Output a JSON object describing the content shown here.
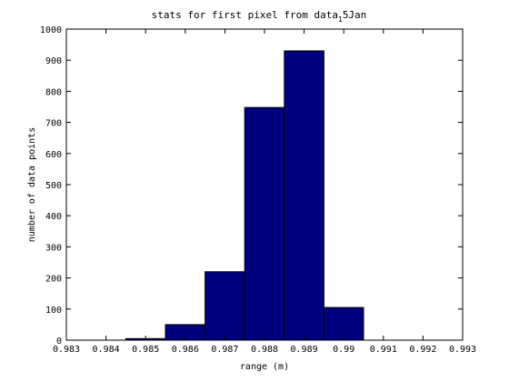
{
  "chart_data": {
    "type": "bar",
    "title": "stats for first pixel from data",
    "title_subscript": "1",
    "title_suffix": "5Jan",
    "xlabel": "range (m)",
    "ylabel": "number of data points",
    "xlim": [
      0.983,
      0.993
    ],
    "ylim": [
      0,
      1000
    ],
    "xticks": [
      0.983,
      0.984,
      0.985,
      0.986,
      0.987,
      0.988,
      0.989,
      0.99,
      0.991,
      0.992,
      0.993
    ],
    "xtick_labels": [
      "0.983",
      "0.984",
      "0.985",
      "0.986",
      "0.987",
      "0.988",
      "0.989",
      "0.99",
      "0.991",
      "0.992",
      "0.993"
    ],
    "yticks": [
      0,
      100,
      200,
      300,
      400,
      500,
      600,
      700,
      800,
      900,
      1000
    ],
    "ytick_labels": [
      "0",
      "100",
      "200",
      "300",
      "400",
      "500",
      "600",
      "700",
      "800",
      "900",
      "1000"
    ],
    "bins": [
      {
        "x0": 0.9845,
        "x1": 0.9855,
        "value": 5
      },
      {
        "x0": 0.9855,
        "x1": 0.9865,
        "value": 50
      },
      {
        "x0": 0.9865,
        "x1": 0.9875,
        "value": 220
      },
      {
        "x0": 0.9875,
        "x1": 0.9885,
        "value": 748
      },
      {
        "x0": 0.9885,
        "x1": 0.9895,
        "value": 930
      },
      {
        "x0": 0.9895,
        "x1": 0.9905,
        "value": 105
      }
    ],
    "bar_color": "#00007f",
    "grid": false,
    "legend": false
  }
}
